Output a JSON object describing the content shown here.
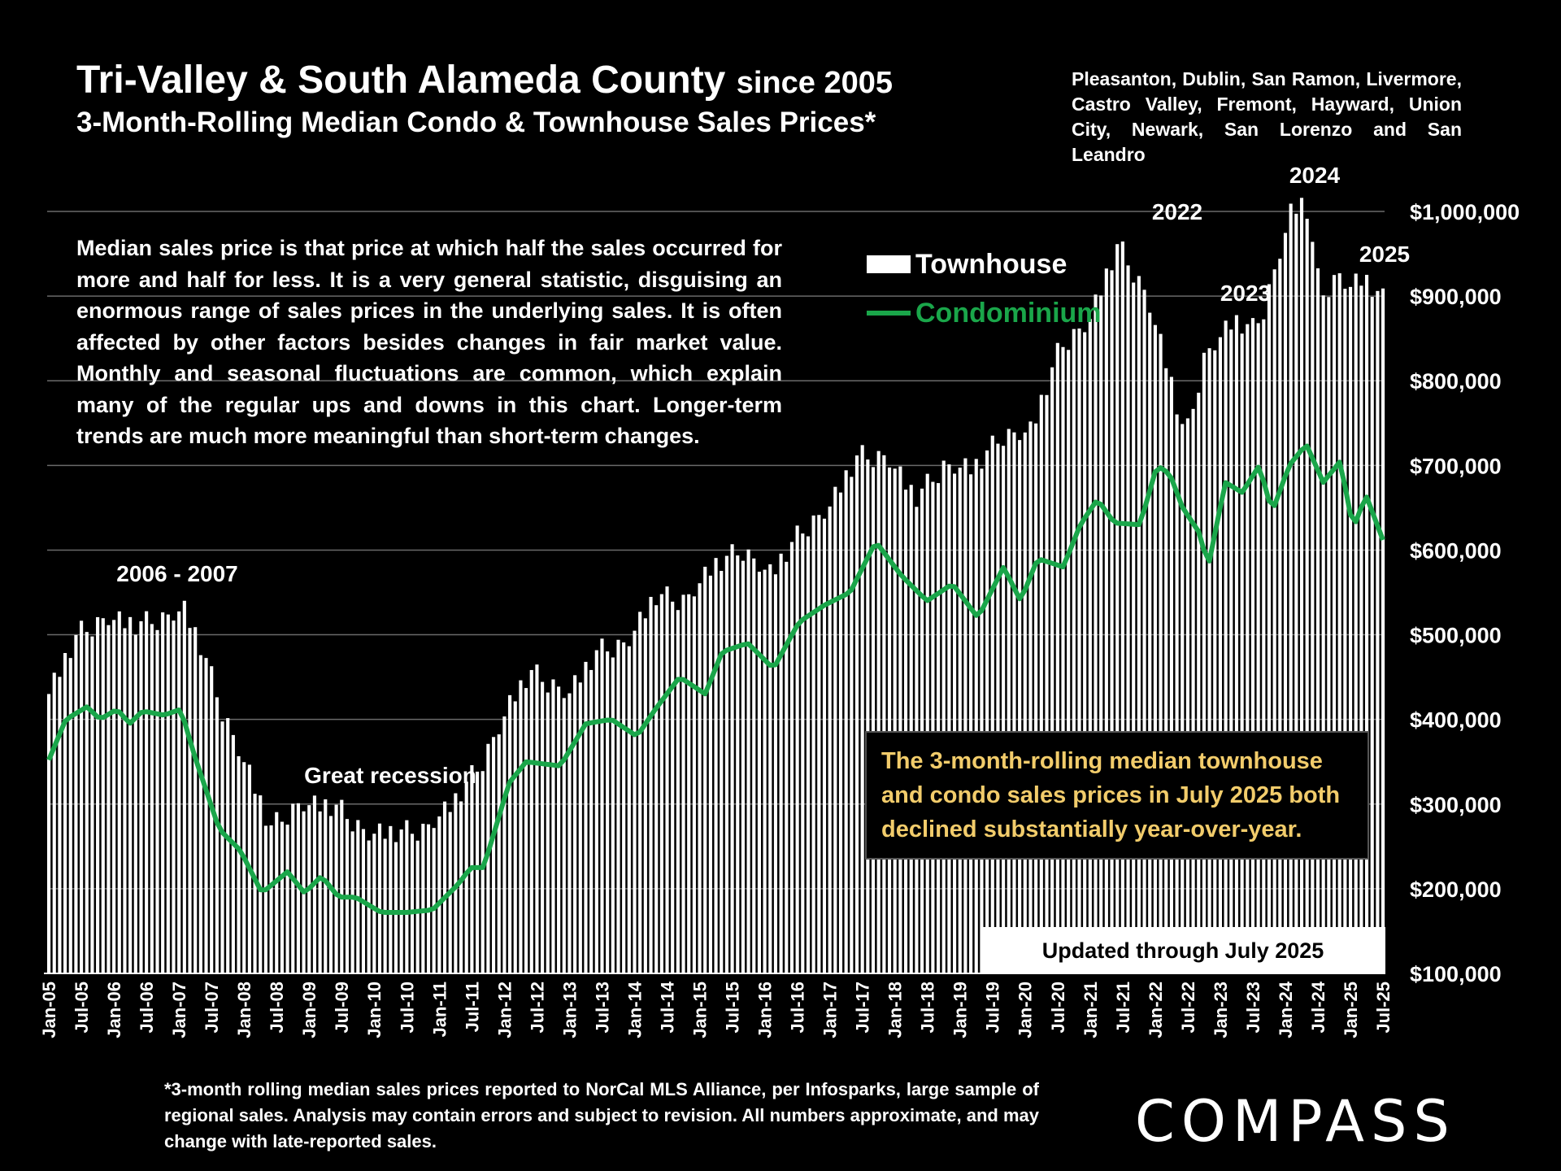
{
  "header": {
    "title_main": "Tri-Valley & South Alameda County",
    "title_suffix": "since 2005",
    "title_line2": "3-Month-Rolling Median Condo & Townhouse Sales Prices*",
    "subtitle": "Pleasanton, Dublin, San Ramon, Livermore, Castro Valley, Fremont, Hayward, Union City, Newark, San Lorenzo and San Leandro"
  },
  "note": "Median sales price is that price at which half the sales occurred for more and half for less. It is a very general statistic, disguising an enormous range of sales prices in the underlying sales. It is often affected by other factors besides changes in fair market value. Monthly and seasonal fluctuations are common, which explain many of the regular ups and downs in this chart. Longer-term trends are much more meaningful than short-term changes.",
  "callout": "The 3-month-rolling median townhouse and condo sales prices in July 2025 both declined substantially year-over-year.",
  "updated": "Updated through July 2025",
  "footnote": "*3-month rolling median sales prices reported to NorCal MLS Alliance, per Infosparks, large sample of regional sales. Analysis may contain errors and subject to revision. All numbers approximate, and may change with late-reported sales.",
  "logo": "COMPASS",
  "colors": {
    "background": "#000000",
    "townhouse": "#ffffff",
    "condo": "#1aa64a",
    "callout_text": "#f2cc6b"
  },
  "chart_data": {
    "type": "bar",
    "x_tick_labels": [
      "Jan-05",
      "Jul-05",
      "Jan-06",
      "Jul-06",
      "Jan-07",
      "Jul-07",
      "Jan-08",
      "Jul-08",
      "Jan-09",
      "Jul-09",
      "Jan-10",
      "Jul-10",
      "Jan-11",
      "Jul-11",
      "Jan-12",
      "Jul-12",
      "Jan-13",
      "Jul-13",
      "Jan-14",
      "Jul-14",
      "Jan-15",
      "Jul-15",
      "Jan-16",
      "Jul-16",
      "Jan-17",
      "Jul-17",
      "Jan-18",
      "Jul-18",
      "Jan-19",
      "Jul-19",
      "Jan-20",
      "Jul-20",
      "Jan-21",
      "Jul-21",
      "Jan-22",
      "Jul-22",
      "Jan-23",
      "Jul-23",
      "Jan-24",
      "Jul-24",
      "Jan-25",
      "Jul-25"
    ],
    "y_tick_labels": [
      "$100,000",
      "$200,000",
      "$300,000",
      "$400,000",
      "$500,000",
      "$600,000",
      "$700,000",
      "$800,000",
      "$900,000",
      "$1,000,000"
    ],
    "ylim": [
      100000,
      1000000
    ],
    "grid": "horizontal",
    "legend": [
      {
        "label": "Townhouse",
        "style": "bar"
      },
      {
        "label": "Condominium",
        "style": "line"
      }
    ],
    "annotations": [
      {
        "text": "2006 - 2007",
        "x_index": 16
      },
      {
        "text": "Great recession",
        "x_index": 54
      },
      {
        "text": "2022",
        "x_index": 206
      },
      {
        "text": "2023",
        "x_index": 221
      },
      {
        "text": "2024",
        "x_index": 232
      },
      {
        "text": "2025",
        "x_index": 243
      }
    ],
    "keypoints": {
      "townhouse": [
        [
          0,
          430000
        ],
        [
          6,
          500000
        ],
        [
          12,
          520000
        ],
        [
          18,
          510000
        ],
        [
          24,
          520000
        ],
        [
          28,
          530000
        ],
        [
          32,
          480000
        ],
        [
          36,
          410000
        ],
        [
          42,
          330000
        ],
        [
          46,
          270000
        ],
        [
          52,
          300000
        ],
        [
          60,
          295000
        ],
        [
          66,
          265000
        ],
        [
          72,
          265000
        ],
        [
          78,
          270000
        ],
        [
          84,
          300000
        ],
        [
          90,
          350000
        ],
        [
          96,
          420000
        ],
        [
          100,
          455000
        ],
        [
          108,
          430000
        ],
        [
          114,
          480000
        ],
        [
          120,
          490000
        ],
        [
          126,
          545000
        ],
        [
          132,
          540000
        ],
        [
          138,
          580000
        ],
        [
          144,
          600000
        ],
        [
          150,
          570000
        ],
        [
          156,
          620000
        ],
        [
          162,
          650000
        ],
        [
          168,
          710000
        ],
        [
          174,
          710000
        ],
        [
          180,
          660000
        ],
        [
          186,
          700000
        ],
        [
          192,
          695000
        ],
        [
          198,
          735000
        ],
        [
          204,
          740000
        ],
        [
          210,
          840000
        ],
        [
          216,
          870000
        ],
        [
          222,
          960000
        ],
        [
          228,
          900000
        ],
        [
          232,
          820000
        ],
        [
          236,
          730000
        ],
        [
          240,
          830000
        ],
        [
          246,
          870000
        ],
        [
          250,
          860000
        ],
        [
          252,
          880000
        ],
        [
          258,
          1000000
        ],
        [
          261,
          1010000
        ],
        [
          264,
          900000
        ],
        [
          268,
          925000
        ],
        [
          270,
          910000
        ],
        [
          273,
          920000
        ],
        [
          277,
          895000
        ]
      ],
      "condominium": [
        [
          0,
          352000
        ],
        [
          4,
          400000
        ],
        [
          9,
          415000
        ],
        [
          12,
          400000
        ],
        [
          16,
          412000
        ],
        [
          19,
          395000
        ],
        [
          22,
          410000
        ],
        [
          27,
          405000
        ],
        [
          31,
          412000
        ],
        [
          34,
          360000
        ],
        [
          40,
          270000
        ],
        [
          45,
          245000
        ],
        [
          50,
          195000
        ],
        [
          56,
          220000
        ],
        [
          60,
          195000
        ],
        [
          64,
          215000
        ],
        [
          68,
          190000
        ],
        [
          72,
          190000
        ],
        [
          78,
          172000
        ],
        [
          84,
          172000
        ],
        [
          90,
          175000
        ],
        [
          96,
          205000
        ],
        [
          99,
          225000
        ],
        [
          102,
          225000
        ],
        [
          108,
          325000
        ],
        [
          112,
          350000
        ],
        [
          120,
          345000
        ],
        [
          126,
          395000
        ],
        [
          132,
          400000
        ],
        [
          138,
          380000
        ],
        [
          142,
          410000
        ],
        [
          148,
          450000
        ],
        [
          154,
          430000
        ],
        [
          158,
          480000
        ],
        [
          164,
          490000
        ],
        [
          170,
          460000
        ],
        [
          176,
          515000
        ],
        [
          182,
          535000
        ],
        [
          188,
          550000
        ],
        [
          194,
          610000
        ],
        [
          200,
          570000
        ],
        [
          206,
          540000
        ],
        [
          212,
          560000
        ],
        [
          218,
          520000
        ],
        [
          224,
          580000
        ],
        [
          228,
          540000
        ],
        [
          232,
          590000
        ],
        [
          238,
          580000
        ],
        [
          242,
          630000
        ],
        [
          246,
          660000
        ],
        [
          250,
          632000
        ],
        [
          256,
          630000
        ],
        [
          260,
          700000
        ],
        [
          263,
          690000
        ],
        [
          266,
          650000
        ],
        [
          270,
          620000
        ],
        [
          272,
          580000
        ],
        [
          276,
          680000
        ],
        [
          280,
          668000
        ],
        [
          284,
          700000
        ],
        [
          287,
          645000
        ],
        [
          291,
          700000
        ],
        [
          295,
          725000
        ],
        [
          299,
          680000
        ],
        [
          303,
          705000
        ],
        [
          306,
          625000
        ],
        [
          309,
          665000
        ],
        [
          313,
          612000
        ]
      ]
    }
  }
}
